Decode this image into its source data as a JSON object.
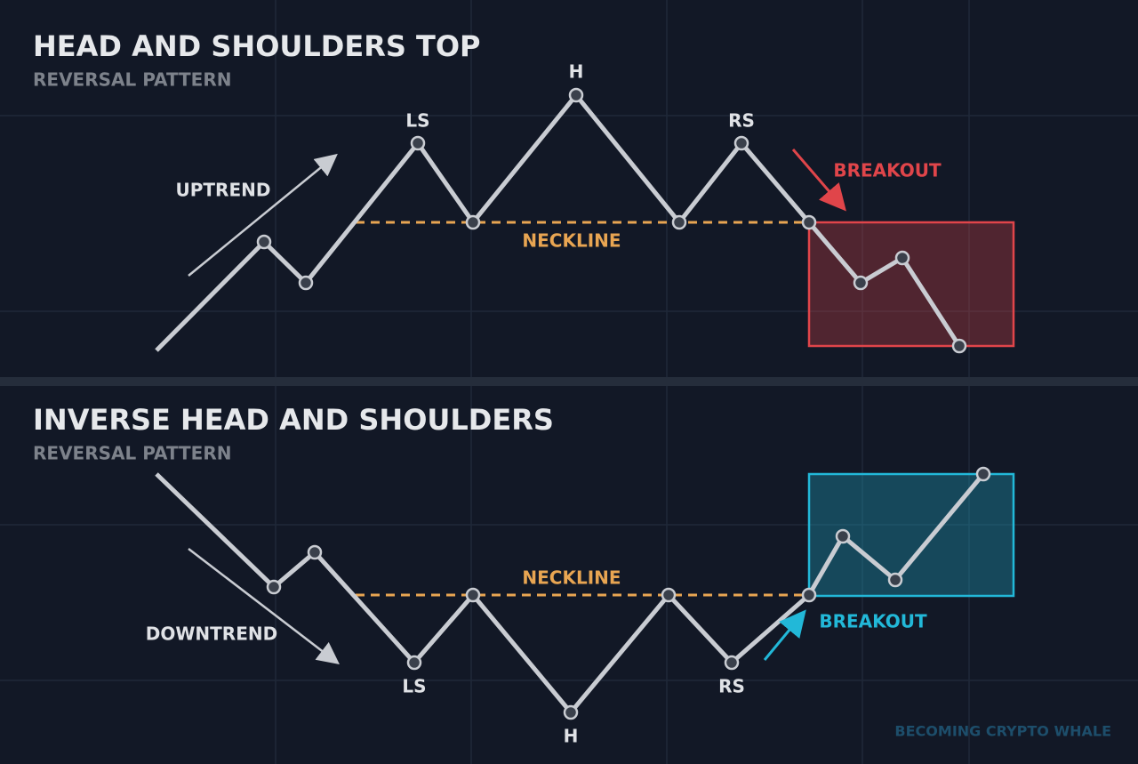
{
  "panels": [
    {
      "title": "HEAD AND SHOULDERS TOP",
      "subtitle": "REVERSAL PATTERN",
      "trend": "UPTREND",
      "neckline": "NECKLINE",
      "breakout": "BREAKOUT",
      "peaks": [
        "LS",
        "H",
        "RS"
      ]
    },
    {
      "title": "INVERSE HEAD AND SHOULDERS",
      "subtitle": "REVERSAL PATTERN",
      "trend": "DOWNTREND",
      "neckline": "NECKLINE",
      "breakout": "BREAKOUT",
      "peaks": [
        "LS",
        "H",
        "RS"
      ]
    }
  ],
  "footer": "BECOMING CRYPTO WHALE"
}
